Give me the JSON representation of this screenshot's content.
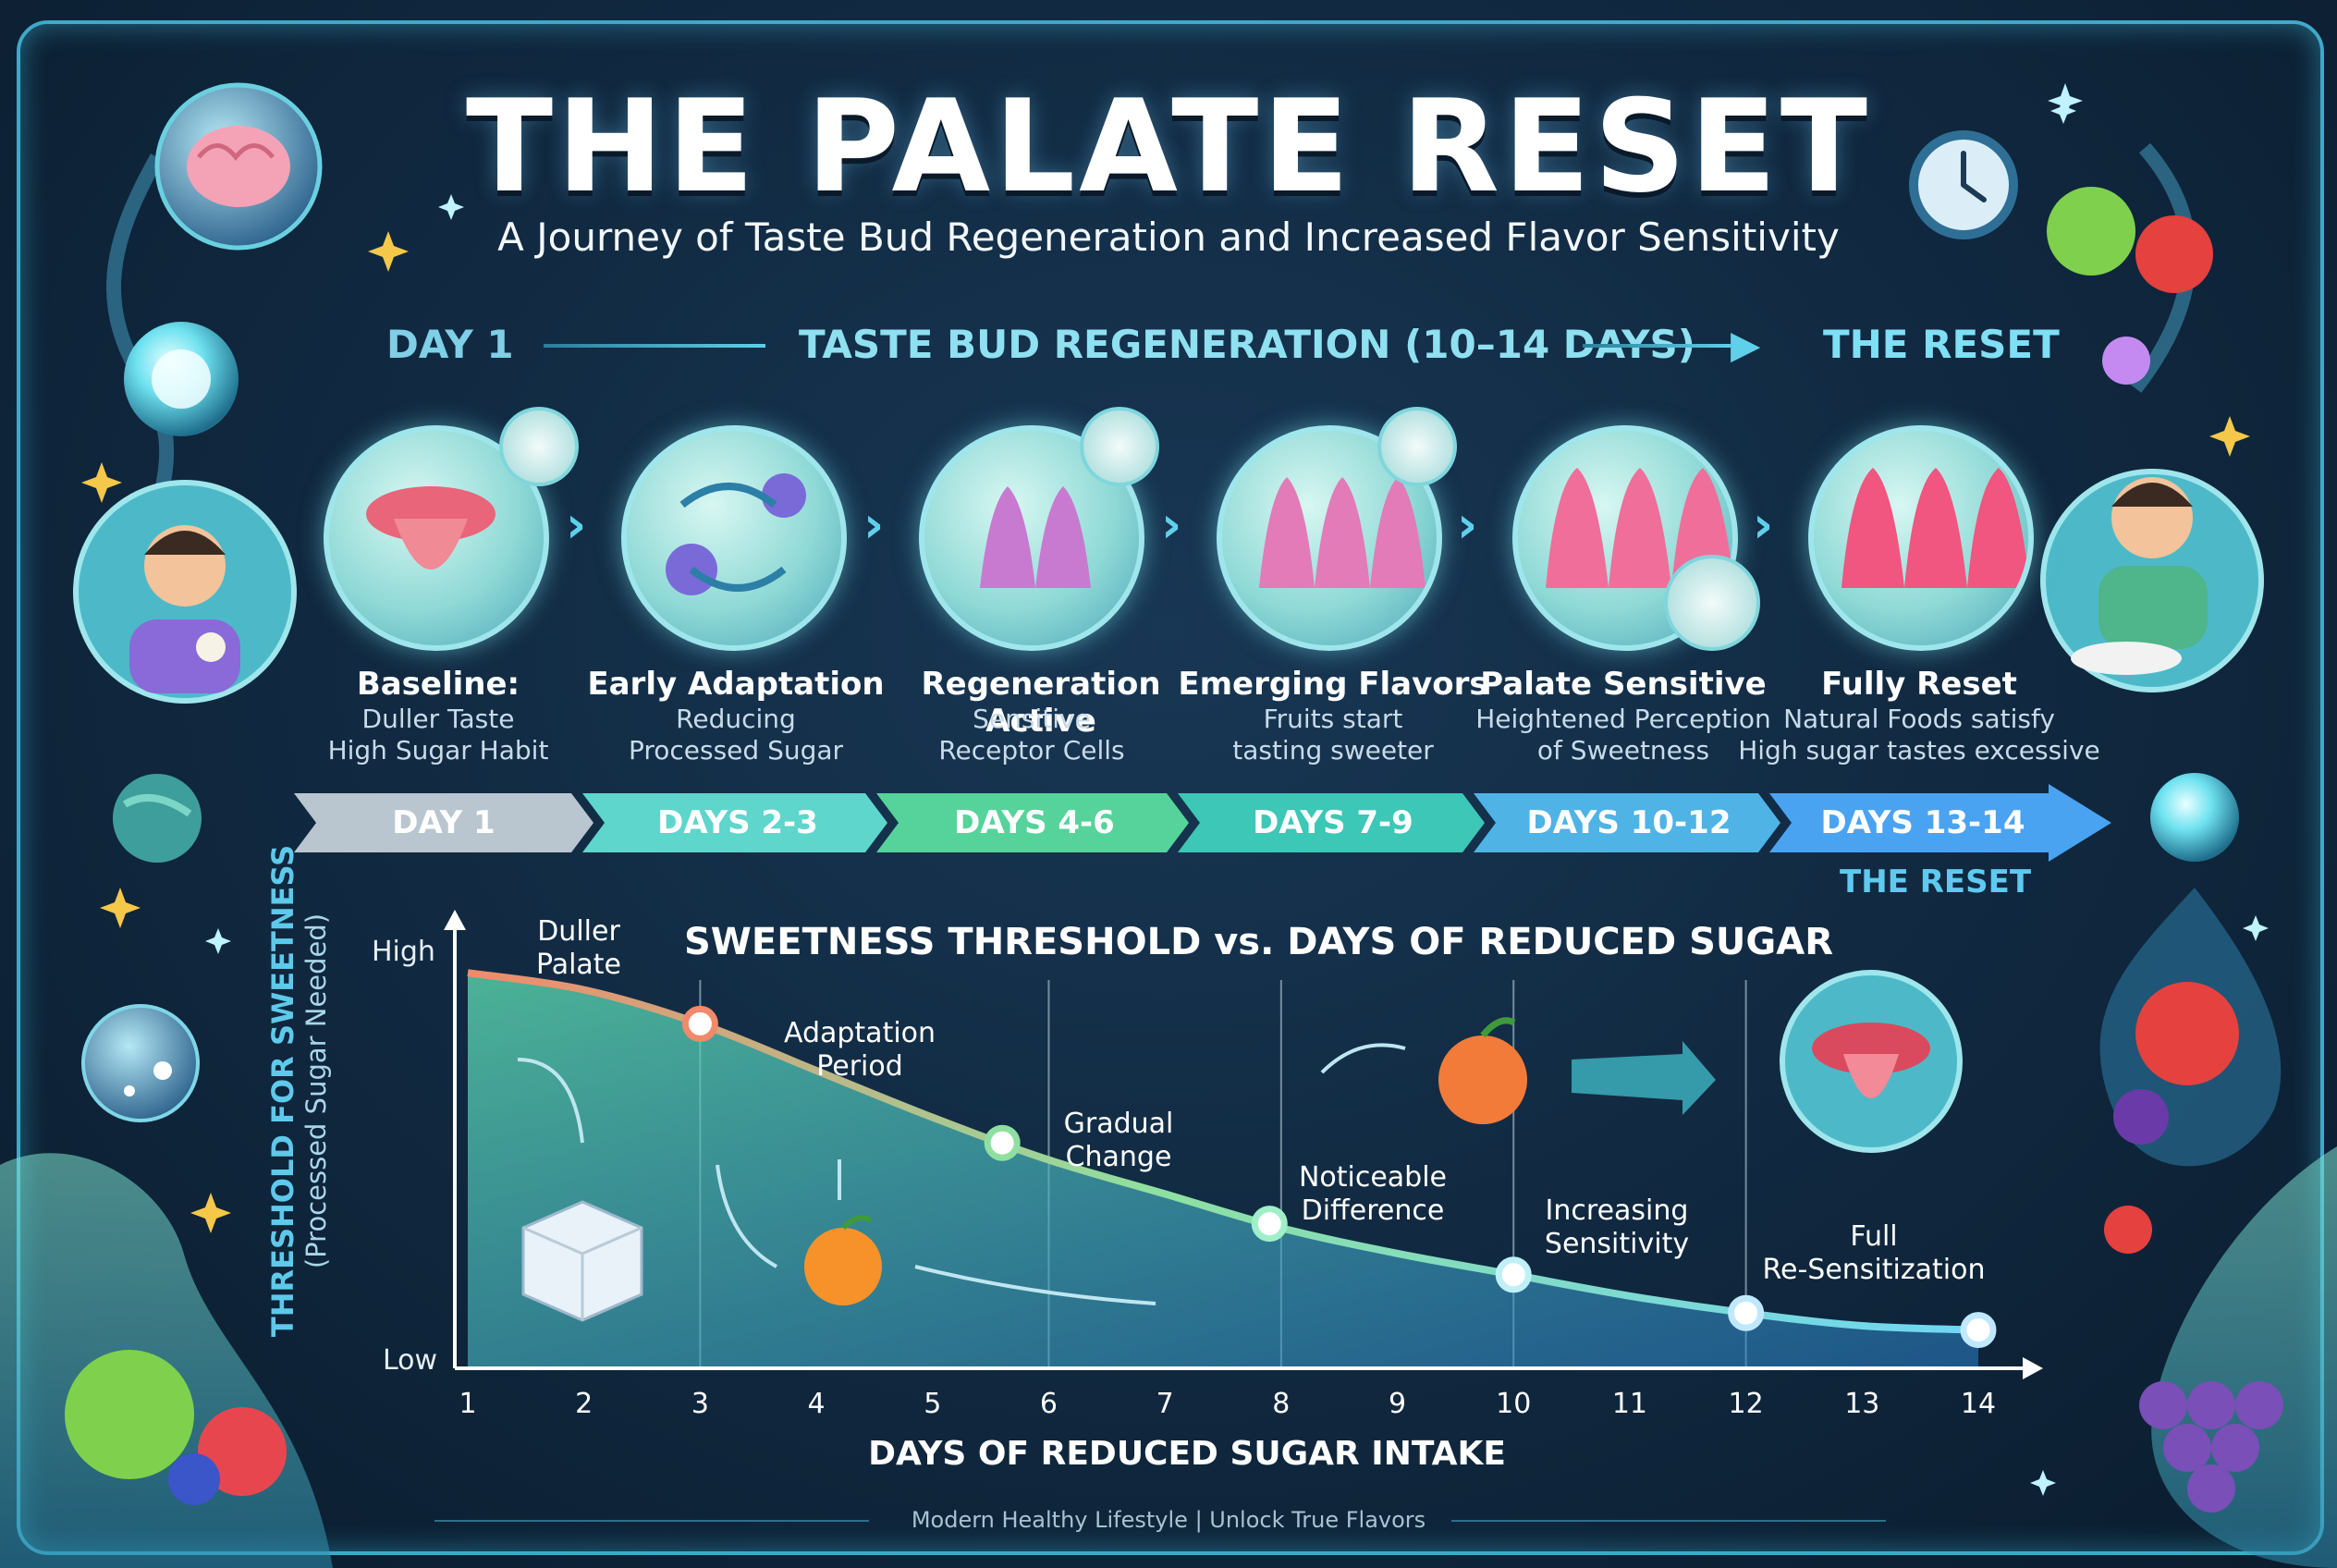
{
  "title": "THE PALATE RESET",
  "subtitle": "A Journey of Taste Bud Regeneration and Increased Flavor Sensitivity",
  "header": {
    "left": "DAY 1",
    "center": "TASTE BUD REGENERATION (10–14 DAYS)",
    "right": "THE RESET"
  },
  "stages": [
    {
      "title": "Baseline:",
      "desc1": "Duller Taste",
      "desc2": "High Sugar Habit"
    },
    {
      "title": "Early Adaptation",
      "desc1": "Reducing",
      "desc2": "Processed Sugar"
    },
    {
      "title": "Regeneration Active",
      "desc1": "Sensitive",
      "desc2": "Receptor Cells"
    },
    {
      "title": "Emerging Flavors",
      "desc1": "Fruits start",
      "desc2": "tasting sweeter"
    },
    {
      "title": "Palate Sensitive",
      "desc1": "Heightened Perception",
      "desc2": "of Sweetness"
    },
    {
      "title": "Fully Reset",
      "desc1": "Natural Foods satisfy",
      "desc2": "High sugar tastes excessive"
    }
  ],
  "timeline": [
    "DAY 1",
    "DAYS 2-3",
    "DAYS 4-6",
    "DAYS 7-9",
    "DAYS 10-12",
    "DAYS 13-14"
  ],
  "timeline_end_label": "THE RESET",
  "colors": {
    "timeline": [
      "#b9c6cf",
      "#5ed6cc",
      "#56d39a",
      "#3cc7b6",
      "#4fb3e6",
      "#4aa3f0"
    ],
    "curve_start": "#f08a6a",
    "curve_end": "#6fd6f5"
  },
  "chart": {
    "title": "SWEETNESS THRESHOLD vs. DAYS OF REDUCED SUGAR",
    "ylabel": "THRESHOLD FOR SWEETNESS",
    "ylabel_sub": "(Processed Sugar Needed)",
    "y_high": "High",
    "y_low": "Low",
    "xlabel": "DAYS OF REDUCED SUGAR INTAKE",
    "annotations": {
      "a1": [
        "Duller",
        "Palate"
      ],
      "a2": [
        "Adaptation",
        "Period"
      ],
      "a3": [
        "Gradual",
        "Change"
      ],
      "a4": [
        "Noticeable",
        "Difference"
      ],
      "a5": [
        "Increasing",
        "Sensitivity"
      ],
      "a6": [
        "Full",
        "Re-Sensitization"
      ]
    }
  },
  "chart_data": {
    "type": "area",
    "title": "SWEETNESS THRESHOLD vs. DAYS OF REDUCED SUGAR",
    "xlabel": "DAYS OF REDUCED SUGAR INTAKE",
    "ylabel": "THRESHOLD FOR SWEETNESS (Processed Sugar Needed)",
    "x_ticks": [
      "1",
      "2",
      "3",
      "4",
      "5",
      "6",
      "7",
      "8",
      "9",
      "10",
      "11",
      "12",
      "13",
      "14"
    ],
    "x": [
      1,
      2,
      3,
      4,
      5,
      6,
      7,
      8,
      9,
      10,
      11,
      12,
      13,
      14
    ],
    "values": [
      0.93,
      0.89,
      0.81,
      0.7,
      0.59,
      0.49,
      0.41,
      0.33,
      0.27,
      0.22,
      0.17,
      0.13,
      0.1,
      0.09
    ],
    "markers": [
      {
        "x": 3,
        "y": 0.81
      },
      {
        "x": 5.6,
        "y": 0.53
      },
      {
        "x": 7.9,
        "y": 0.34
      },
      {
        "x": 10,
        "y": 0.22
      },
      {
        "x": 12,
        "y": 0.13
      },
      {
        "x": 14,
        "y": 0.09
      }
    ],
    "y_tick_labels": [
      "Low",
      "High"
    ],
    "ylim": [
      0,
      1
    ],
    "xlim": [
      1,
      14
    ],
    "grid": "vertical dividers at days 3, 6, 8, 10, 12"
  },
  "footer": "Modern Healthy Lifestyle | Unlock True Flavors"
}
